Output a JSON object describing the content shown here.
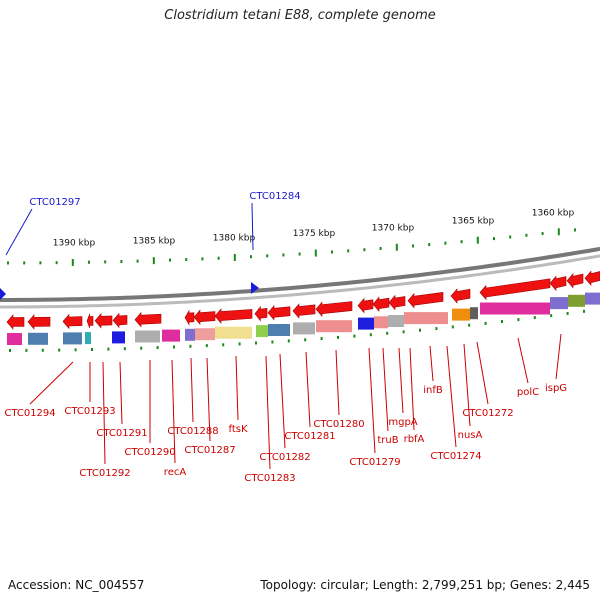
{
  "title": "Clostridium tetani E88, complete genome",
  "footer": {
    "accession": "Accession: NC_004557",
    "topology": "Topology: circular; Length: 2,799,251 bp; Genes: 2,445"
  },
  "scale_labels": [
    "1390 kbp",
    "1385 kbp",
    "1380 kbp",
    "1375 kbp",
    "1370 kbp",
    "1365 kbp",
    "1360 kbp"
  ],
  "gene_labels_top": [
    "CTC01297",
    "CTC01284"
  ],
  "gene_labels_bottom": [
    "CTC01294",
    "CTC01293",
    "CTC01292",
    "CTC01291",
    "CTC01290",
    "recA",
    "CTC01288",
    "CTC01287",
    "ftsK",
    "CTC01283",
    "CTC01282",
    "CTC01281",
    "CTC01280",
    "CTC01279",
    "truB",
    "mgpA",
    "rbfA",
    "infB",
    "CTC01274",
    "nusA",
    "CTC01272",
    "polC",
    "ispG"
  ],
  "colors": {
    "gene_arrow": "#ee1111",
    "label_top": "#1a1acc",
    "label_bottom": "#cc0000",
    "tick": "#1a8a1a",
    "backbone": "#888888"
  }
}
